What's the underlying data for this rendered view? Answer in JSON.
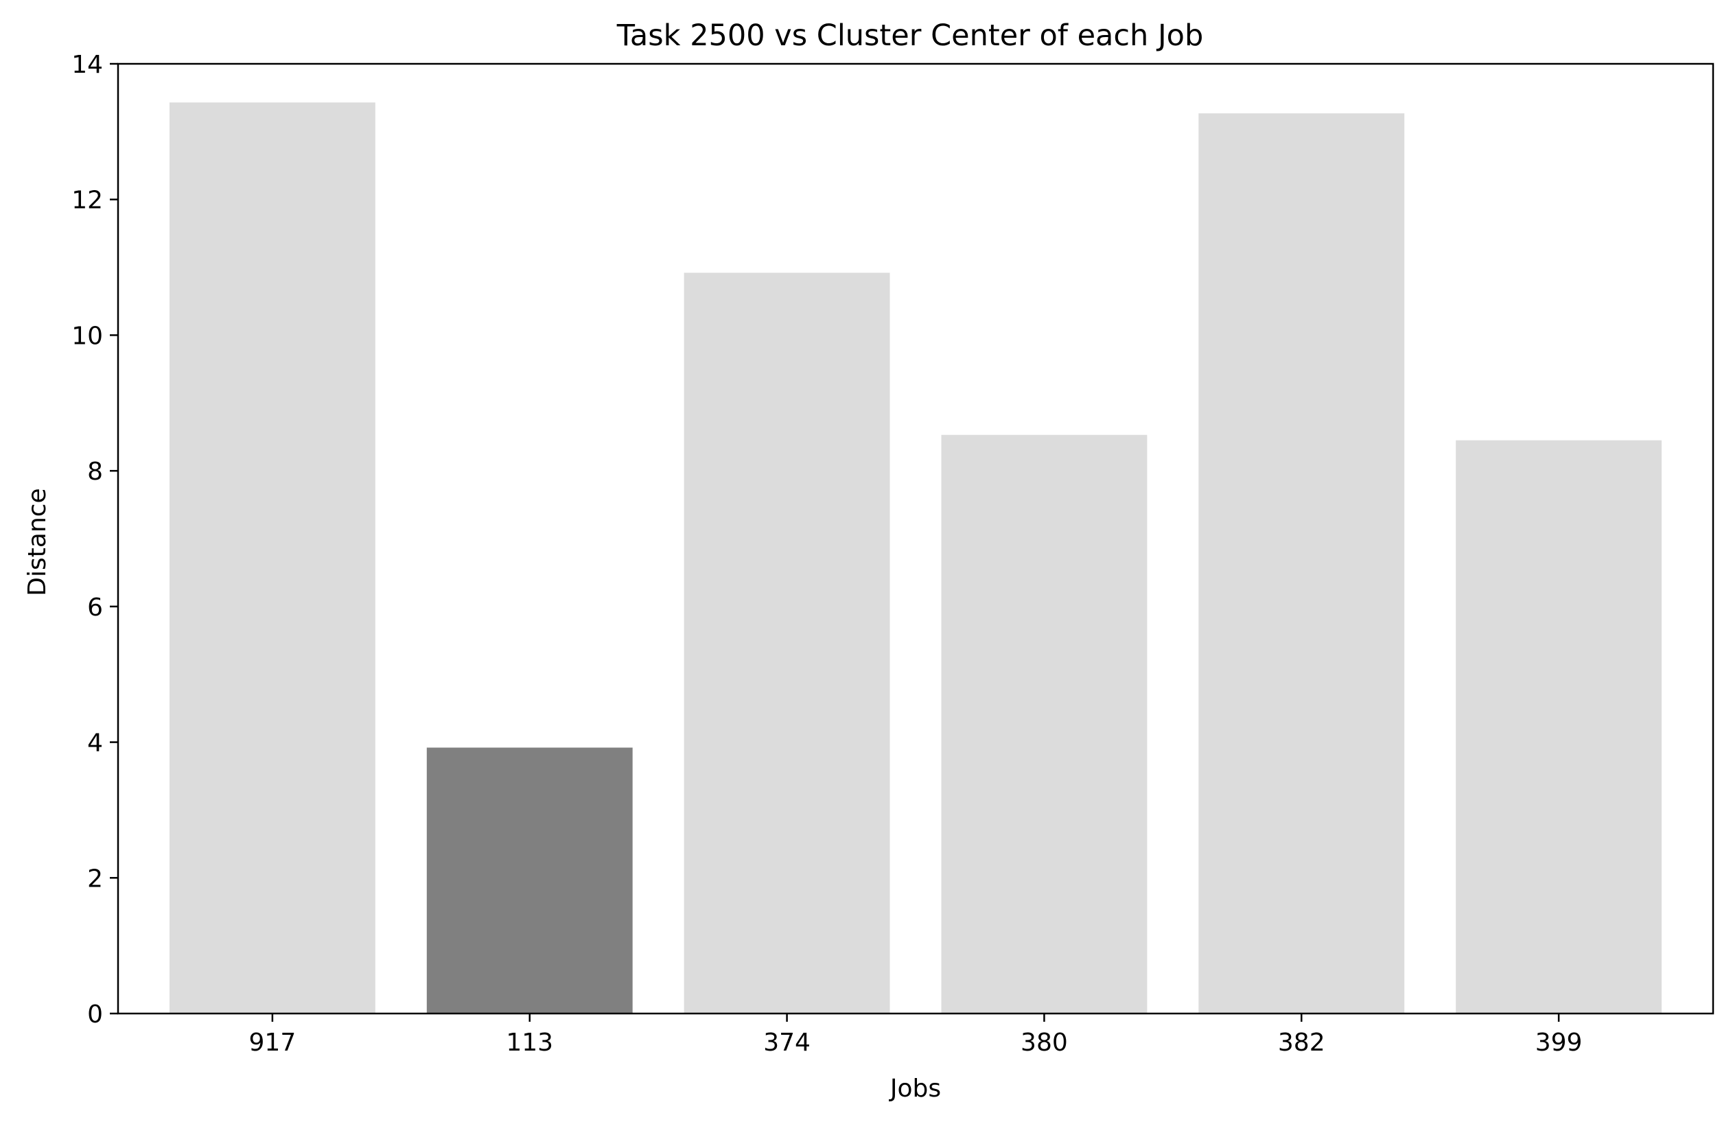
{
  "chart_data": {
    "type": "bar",
    "title": "Task 2500 vs Cluster Center of each Job",
    "xlabel": "Jobs",
    "ylabel": "Distance",
    "categories": [
      "917",
      "113",
      "374",
      "380",
      "382",
      "399"
    ],
    "values": [
      13.43,
      3.92,
      10.92,
      8.53,
      13.27,
      8.45
    ],
    "highlight_index": 1,
    "ylim": [
      0,
      14
    ],
    "yticks": [
      "0",
      "2",
      "4",
      "6",
      "8",
      "10",
      "12",
      "14"
    ],
    "grid": false,
    "legend": "none",
    "colors": {
      "bar": "#dcdcdc",
      "highlight": "#808080",
      "axis": "#000000"
    }
  }
}
